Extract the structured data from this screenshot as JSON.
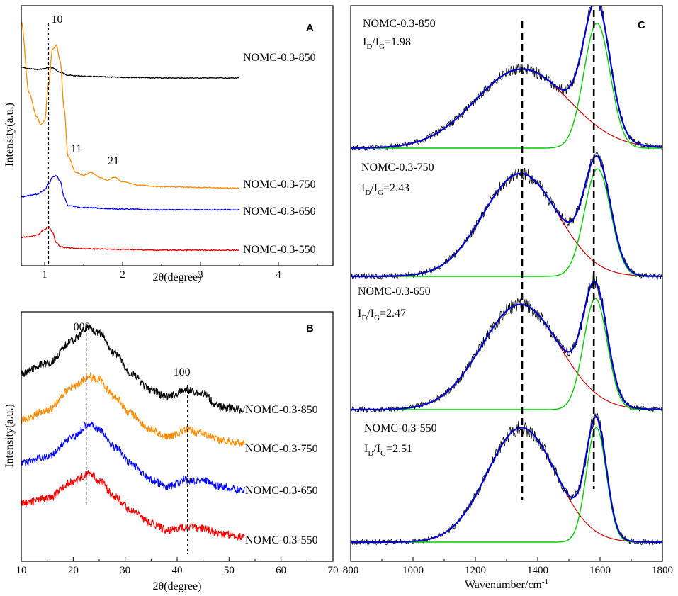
{
  "chart_data": [
    {
      "panel": "A",
      "type": "line",
      "xlabel": "2θ(degree)",
      "ylabel": "Intensity(a.u.)",
      "xlim": [
        0.7,
        4.7
      ],
      "xticks": [
        "1",
        "2",
        "3",
        "4"
      ],
      "xtick_values": [
        1,
        2,
        3,
        4
      ],
      "peak_labels": [
        {
          "text": "10",
          "x": 1.05
        },
        {
          "text": "11",
          "x": 1.55
        },
        {
          "text": "21",
          "x": 1.9
        }
      ],
      "guide_x": 1.05,
      "series": [
        {
          "name": "NOMC-0.3-850",
          "color": "#000000",
          "x": [
            0.7,
            0.8,
            0.9,
            1.0,
            1.05,
            1.1,
            1.2,
            1.3,
            1.4,
            1.6,
            2.0,
            2.5,
            3.0,
            3.5
          ],
          "values": [
            95,
            93,
            92,
            93,
            95,
            94,
            88,
            84,
            83,
            82,
            81,
            80,
            80,
            80
          ]
        },
        {
          "name": "NOMC-0.3-750",
          "color": "#ff8c00",
          "x": [
            0.7,
            0.8,
            0.9,
            0.95,
            1.0,
            1.05,
            1.1,
            1.15,
            1.2,
            1.25,
            1.3,
            1.4,
            1.5,
            1.6,
            1.7,
            1.8,
            1.9,
            2.0,
            2.2,
            2.5,
            3.0,
            3.5
          ],
          "values": [
            230,
            140,
            110,
            100,
            105,
            150,
            195,
            200,
            180,
            120,
            60,
            40,
            36,
            40,
            34,
            30,
            34,
            28,
            24,
            22,
            21,
            20
          ]
        },
        {
          "name": "NOMC-0.3-650",
          "color": "#0000ff",
          "x": [
            0.7,
            0.8,
            0.9,
            1.0,
            1.05,
            1.1,
            1.15,
            1.2,
            1.25,
            1.3,
            1.5,
            2.0,
            2.5,
            3.0,
            3.5
          ],
          "values": [
            30,
            32,
            34,
            40,
            48,
            58,
            60,
            52,
            30,
            18,
            15,
            13,
            12,
            12,
            12
          ]
        },
        {
          "name": "NOMC-0.3-550",
          "color": "#e00000",
          "x": [
            0.7,
            0.8,
            0.9,
            1.0,
            1.05,
            1.1,
            1.15,
            1.2,
            1.3,
            1.5,
            2.0,
            2.5,
            3.0,
            3.5
          ],
          "values": [
            25,
            26,
            28,
            36,
            40,
            32,
            18,
            12,
            10,
            9,
            8,
            7,
            7,
            7
          ]
        }
      ]
    },
    {
      "panel": "B",
      "type": "line",
      "xlabel": "2θ(degree)",
      "ylabel": "Intensity(a.u.)",
      "xlim": [
        10,
        70
      ],
      "xticks": [
        "10",
        "20",
        "30",
        "40",
        "50",
        "60",
        "70"
      ],
      "xtick_values": [
        10,
        20,
        30,
        40,
        50,
        60,
        70
      ],
      "peak_labels": [
        {
          "text": "002",
          "x": 22.5
        },
        {
          "text": "100",
          "x": 42
        }
      ],
      "guide_x": [
        22.5,
        42
      ],
      "series": [
        {
          "name": "NOMC-0.3-850",
          "color": "#000000",
          "x": [
            10,
            15,
            20,
            23,
            25,
            28,
            31,
            35,
            38,
            42,
            45,
            48,
            53
          ],
          "values": [
            100,
            106,
            120,
            128,
            124,
            112,
            100,
            90,
            86,
            90,
            88,
            80,
            78
          ]
        },
        {
          "name": "NOMC-0.3-750",
          "color": "#ff8c00",
          "x": [
            10,
            15,
            20,
            23,
            25,
            28,
            31,
            35,
            38,
            42,
            45,
            48,
            53
          ],
          "values": [
            72,
            78,
            92,
            98,
            96,
            86,
            76,
            66,
            62,
            66,
            64,
            60,
            58
          ]
        },
        {
          "name": "NOMC-0.3-650",
          "color": "#0000ff",
          "x": [
            10,
            15,
            20,
            23,
            25,
            28,
            31,
            35,
            38,
            42,
            45,
            48,
            53
          ],
          "values": [
            46,
            50,
            62,
            70,
            66,
            56,
            46,
            36,
            32,
            36,
            36,
            32,
            30
          ]
        },
        {
          "name": "NOMC-0.3-550",
          "color": "#ff0000",
          "x": [
            10,
            15,
            20,
            23,
            25,
            28,
            31,
            35,
            38,
            42,
            45,
            48,
            53
          ],
          "values": [
            22,
            25,
            35,
            40,
            36,
            26,
            18,
            10,
            6,
            8,
            7,
            4,
            2
          ]
        }
      ]
    },
    {
      "panel": "C",
      "type": "line",
      "xlabel": "Wavenumber/cm",
      "xlabel_sup": "-1",
      "xlim": [
        800,
        1800
      ],
      "xticks": [
        "800",
        "1000",
        "1200",
        "1400",
        "1600",
        "1800"
      ],
      "xtick_values": [
        800,
        1000,
        1200,
        1400,
        1600,
        1800
      ],
      "guide_x": [
        1350,
        1580
      ],
      "fit_colors": {
        "raw": "#000000",
        "fit": "#0000cc",
        "d_band": "#cc0000",
        "g_band": "#00cc00"
      },
      "spectra": [
        {
          "name": "NOMC-0.3-850",
          "ratio_prefix": "I",
          "ratio_sub1": "D",
          "ratio_slash": "/I",
          "ratio_sub2": "G",
          "ratio_value": "=1.98",
          "d_center": 1350,
          "d_height": 0.62,
          "d_width": 150,
          "g_center": 1590,
          "g_height": 0.98,
          "g_width": 42
        },
        {
          "name": "NOMC-0.3-750",
          "ratio_prefix": "I",
          "ratio_sub1": "D",
          "ratio_slash": "/I",
          "ratio_sub2": "G",
          "ratio_value": "=2.43",
          "d_center": 1345,
          "d_height": 0.88,
          "d_width": 120,
          "g_center": 1592,
          "g_height": 0.92,
          "g_width": 42
        },
        {
          "name": "NOMC-0.3-650",
          "ratio_prefix": "I",
          "ratio_sub1": "D",
          "ratio_slash": "/I",
          "ratio_sub2": "G",
          "ratio_value": "=2.47",
          "d_center": 1345,
          "d_height": 0.9,
          "d_width": 125,
          "g_center": 1585,
          "g_height": 0.95,
          "g_width": 38
        },
        {
          "name": "NOMC-0.3-550",
          "ratio_prefix": "I",
          "ratio_sub1": "D",
          "ratio_slash": "/I",
          "ratio_sub2": "G",
          "ratio_value": "=2.51",
          "d_center": 1348,
          "d_height": 0.95,
          "d_width": 110,
          "g_center": 1588,
          "g_height": 0.95,
          "g_width": 32
        }
      ]
    }
  ]
}
